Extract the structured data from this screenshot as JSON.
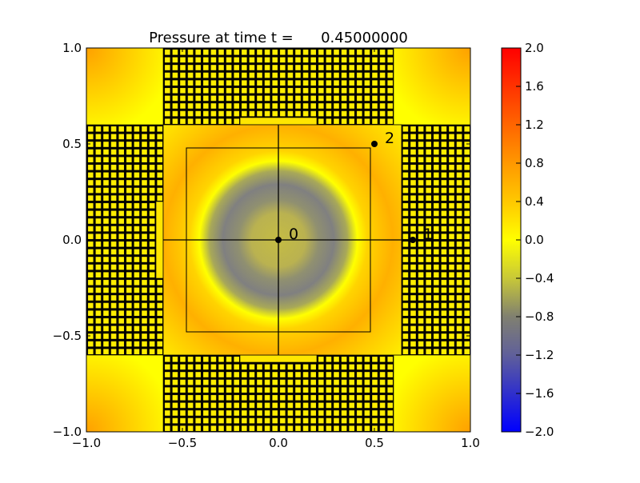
{
  "chart_data": {
    "type": "heatmap",
    "title": "Pressure at time t =      0.45000000",
    "xlabel": "",
    "ylabel": "",
    "xlim": [
      -1.0,
      1.0
    ],
    "ylim": [
      -1.0,
      1.0
    ],
    "xticks": [
      "−1.0",
      "−0.5",
      "0.0",
      "0.5",
      "1.0"
    ],
    "xtick_values": [
      -1.0,
      -0.5,
      0.0,
      0.5,
      1.0
    ],
    "yticks": [
      "−1.0",
      "−0.5",
      "0.0",
      "0.5",
      "1.0"
    ],
    "ytick_values": [
      -1.0,
      -0.5,
      0.0,
      0.5,
      1.0
    ],
    "colorbar": {
      "range": [
        -2.0,
        2.0
      ],
      "ticks": [
        "−2.0",
        "−1.6",
        "−1.2",
        "−0.8",
        "−0.4",
        "0.0",
        "0.4",
        "0.8",
        "1.2",
        "1.6",
        "2.0"
      ],
      "tick_values": [
        -2.0,
        -1.6,
        -1.2,
        -0.8,
        -0.4,
        0.0,
        0.4,
        0.8,
        1.2,
        1.6,
        2.0
      ],
      "colors": [
        {
          "value": -2.0,
          "color": "#0000ff"
        },
        {
          "value": -1.2,
          "color": "#60609a"
        },
        {
          "value": -0.8,
          "color": "#808070"
        },
        {
          "value": -0.4,
          "color": "#c8c838"
        },
        {
          "value": 0.0,
          "color": "#ffff00"
        },
        {
          "value": 0.4,
          "color": "#ffc800"
        },
        {
          "value": 0.8,
          "color": "#ff9800"
        },
        {
          "value": 2.0,
          "color": "#ff0000"
        }
      ]
    },
    "probe_points": [
      {
        "label": "0",
        "x": 0.0,
        "y": 0.0
      },
      {
        "label": "1",
        "x": 0.7,
        "y": 0.0
      },
      {
        "label": "2",
        "x": 0.5,
        "y": 0.5
      }
    ],
    "mesh": {
      "fine_cell_size": 0.04,
      "inner_box": [
        -0.6,
        0.6,
        -0.6,
        0.6
      ],
      "inner_rect": [
        -0.48,
        0.48,
        -0.48,
        0.48
      ]
    }
  }
}
